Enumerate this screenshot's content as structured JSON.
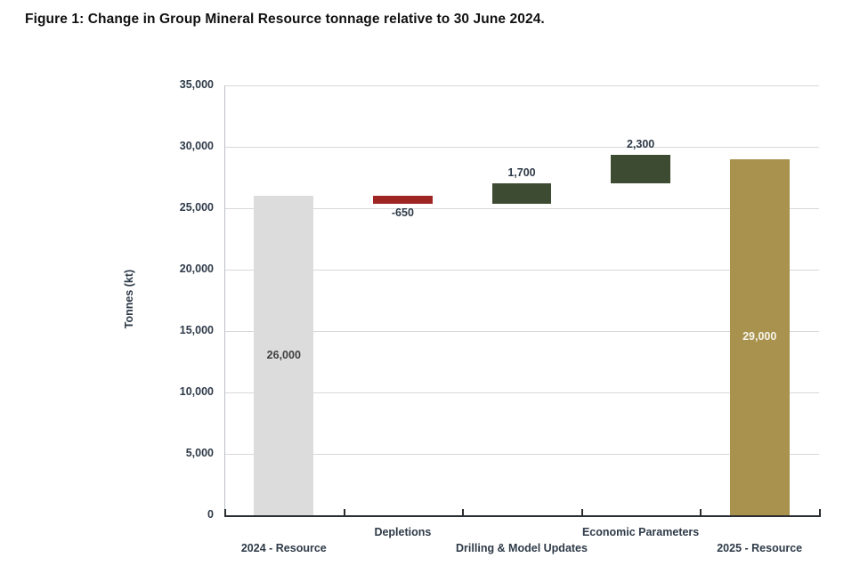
{
  "title": "Figure 1: Change in Group Mineral Resource tonnage relative to 30 June 2024.",
  "chart_data": {
    "type": "bar",
    "subtype": "waterfall",
    "title": "Figure 1: Change in Group Mineral Resource tonnage relative to 30 June 2024.",
    "xlabel": "",
    "ylabel": "Tonnes (kt)",
    "ylim": [
      0,
      35000
    ],
    "ytick_step": 5000,
    "ytick_labels": [
      "0",
      "5,000",
      "10,000",
      "15,000",
      "20,000",
      "25,000",
      "30,000",
      "35,000"
    ],
    "grid": true,
    "legend": "none",
    "categories": [
      "2024 - Resource",
      "Depletions",
      "Drilling & Model Updates",
      "Economic Parameters",
      "2025 - Resource"
    ],
    "bars": [
      {
        "category": "2024 - Resource",
        "value": 26000,
        "display": "26,000",
        "base": 0,
        "top": 26000,
        "color": "#dcdcdc",
        "label_placement": "inside",
        "label_color": "#3f3f3f",
        "axis_row": "lower"
      },
      {
        "category": "Depletions",
        "value": -650,
        "display": "-650",
        "base": 25350,
        "top": 26000,
        "color": "#9e2522",
        "label_placement": "below",
        "label_color": "#2e3a48",
        "axis_row": "upper"
      },
      {
        "category": "Drilling & Model Updates",
        "value": 1700,
        "display": "1,700",
        "base": 25350,
        "top": 27050,
        "color": "#3e4b33",
        "label_placement": "above",
        "label_color": "#2e3a48",
        "axis_row": "lower"
      },
      {
        "category": "Economic Parameters",
        "value": 2300,
        "display": "2,300",
        "base": 27050,
        "top": 29350,
        "color": "#3e4b33",
        "label_placement": "above",
        "label_color": "#2e3a48",
        "axis_row": "upper"
      },
      {
        "category": "2025 - Resource",
        "value": 29000,
        "display": "29,000",
        "base": 0,
        "top": 29000,
        "color": "#a8924e",
        "label_placement": "inside",
        "label_color": "#f7f4ea",
        "axis_row": "lower"
      }
    ],
    "colors": {
      "start_end_2024": "#dcdcdc",
      "decrease": "#9e2522",
      "increase": "#3e4b33",
      "end_2025": "#a8924e",
      "gridline": "#d8d8d8",
      "axis": "#2b2f33",
      "tick_text": "#2e3a48"
    }
  }
}
